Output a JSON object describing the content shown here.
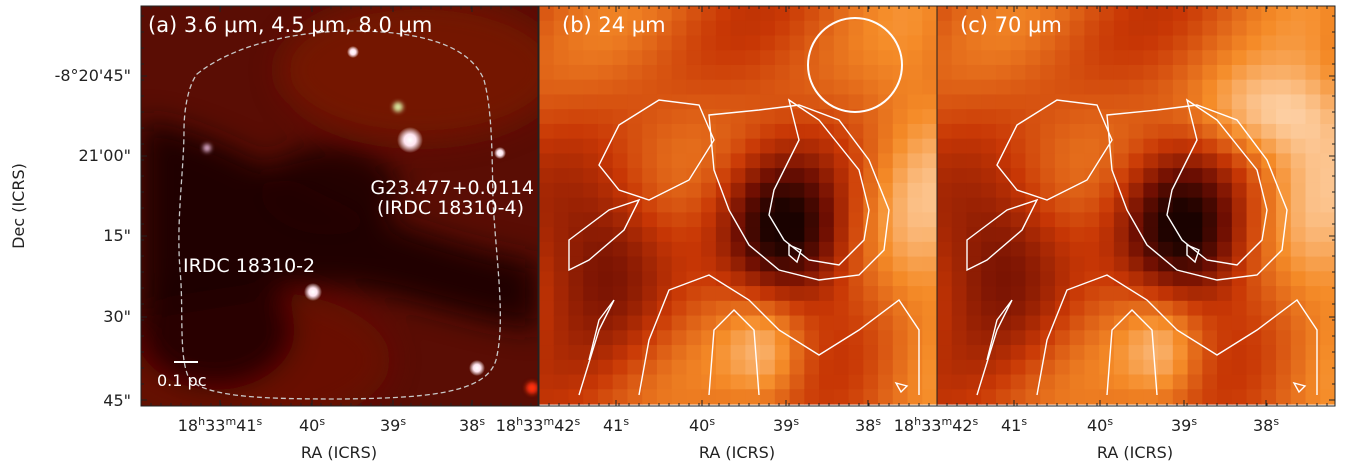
{
  "panels": [
    {
      "label": "(a) 3.6 μm, 4.5 μm, 8.0 μm"
    },
    {
      "label": "(b) 24 μm"
    },
    {
      "label": "(c) 70 μm"
    }
  ],
  "sources": {
    "main_line1": "G23.477+0.0114",
    "main_line2": "(IRDC 18310-4)",
    "secondary": "IRDC 18310-2"
  },
  "scalebar_label": "0.1 pc",
  "y_axis": {
    "title": "Dec (ICRS)",
    "ticks": [
      "-8°20'45\"",
      "21'00\"",
      "15\"",
      "30\"",
      "45\""
    ]
  },
  "x_axis": {
    "title": "RA (ICRS)",
    "panel_a_ticks": [
      "18h33m41s",
      "40s",
      "39s",
      "38s",
      "18h33m42s"
    ],
    "panel_b_ticks": [
      "41s",
      "40s",
      "39s",
      "38s",
      "18h33m42s"
    ],
    "panel_c_ticks": [
      "41s",
      "40s",
      "39s",
      "38s"
    ]
  },
  "colors": {
    "ir_background": "#5a0d04",
    "heat_dark": "#1a0200",
    "heat_light": "#ffd9b0",
    "contour": "#ffffff"
  }
}
